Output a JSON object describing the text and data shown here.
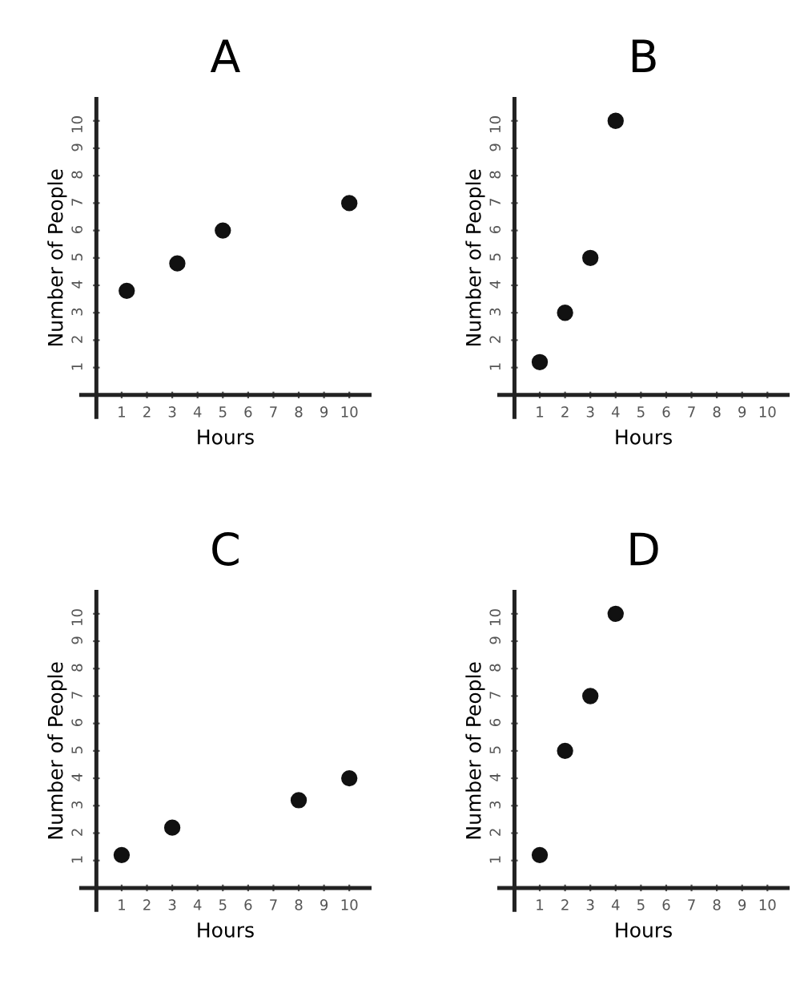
{
  "chart_data": [
    {
      "type": "scatter",
      "title": "A",
      "xlabel": "Hours",
      "ylabel": "Number of People",
      "x": [
        1.2,
        3.2,
        5,
        10
      ],
      "values": [
        3.8,
        4.8,
        6,
        7
      ],
      "color": "#111111",
      "marker": "circle",
      "xlim": [
        -0.6,
        10.8
      ],
      "ylim": [
        -0.8,
        10.8
      ],
      "xticks": [
        1,
        2,
        3,
        4,
        5,
        6,
        7,
        8,
        9,
        10
      ],
      "yticks": [
        1,
        2,
        3,
        4,
        5,
        6,
        7,
        8,
        9,
        10
      ],
      "grid": false
    },
    {
      "type": "scatter",
      "title": "B",
      "xlabel": "Hours",
      "ylabel": "Number of People",
      "x": [
        1,
        2,
        3,
        4
      ],
      "values": [
        1.2,
        3,
        5,
        10
      ],
      "color": "#111111",
      "marker": "circle",
      "xlim": [
        -0.6,
        10.8
      ],
      "ylim": [
        -0.8,
        10.8
      ],
      "xticks": [
        1,
        2,
        3,
        4,
        5,
        6,
        7,
        8,
        9,
        10
      ],
      "yticks": [
        1,
        2,
        3,
        4,
        5,
        6,
        7,
        8,
        9,
        10
      ],
      "grid": false
    },
    {
      "type": "scatter",
      "title": "C",
      "xlabel": "Hours",
      "ylabel": "Number of People",
      "x": [
        1,
        3,
        8,
        10
      ],
      "values": [
        1.2,
        2.2,
        3.2,
        4
      ],
      "color": "#111111",
      "marker": "circle",
      "xlim": [
        -0.6,
        10.8
      ],
      "ylim": [
        -0.8,
        10.8
      ],
      "xticks": [
        1,
        2,
        3,
        4,
        5,
        6,
        7,
        8,
        9,
        10
      ],
      "yticks": [
        1,
        2,
        3,
        4,
        5,
        6,
        7,
        8,
        9,
        10
      ],
      "grid": false
    },
    {
      "type": "scatter",
      "title": "D",
      "xlabel": "Hours",
      "ylabel": "Number of People",
      "x": [
        1,
        2,
        3,
        4
      ],
      "values": [
        1.2,
        5,
        7,
        10
      ],
      "color": "#111111",
      "marker": "circle",
      "xlim": [
        -0.6,
        10.8
      ],
      "ylim": [
        -0.8,
        10.8
      ],
      "xticks": [
        1,
        2,
        3,
        4,
        5,
        6,
        7,
        8,
        9,
        10
      ],
      "yticks": [
        1,
        2,
        3,
        4,
        5,
        6,
        7,
        8,
        9,
        10
      ],
      "grid": false
    }
  ]
}
